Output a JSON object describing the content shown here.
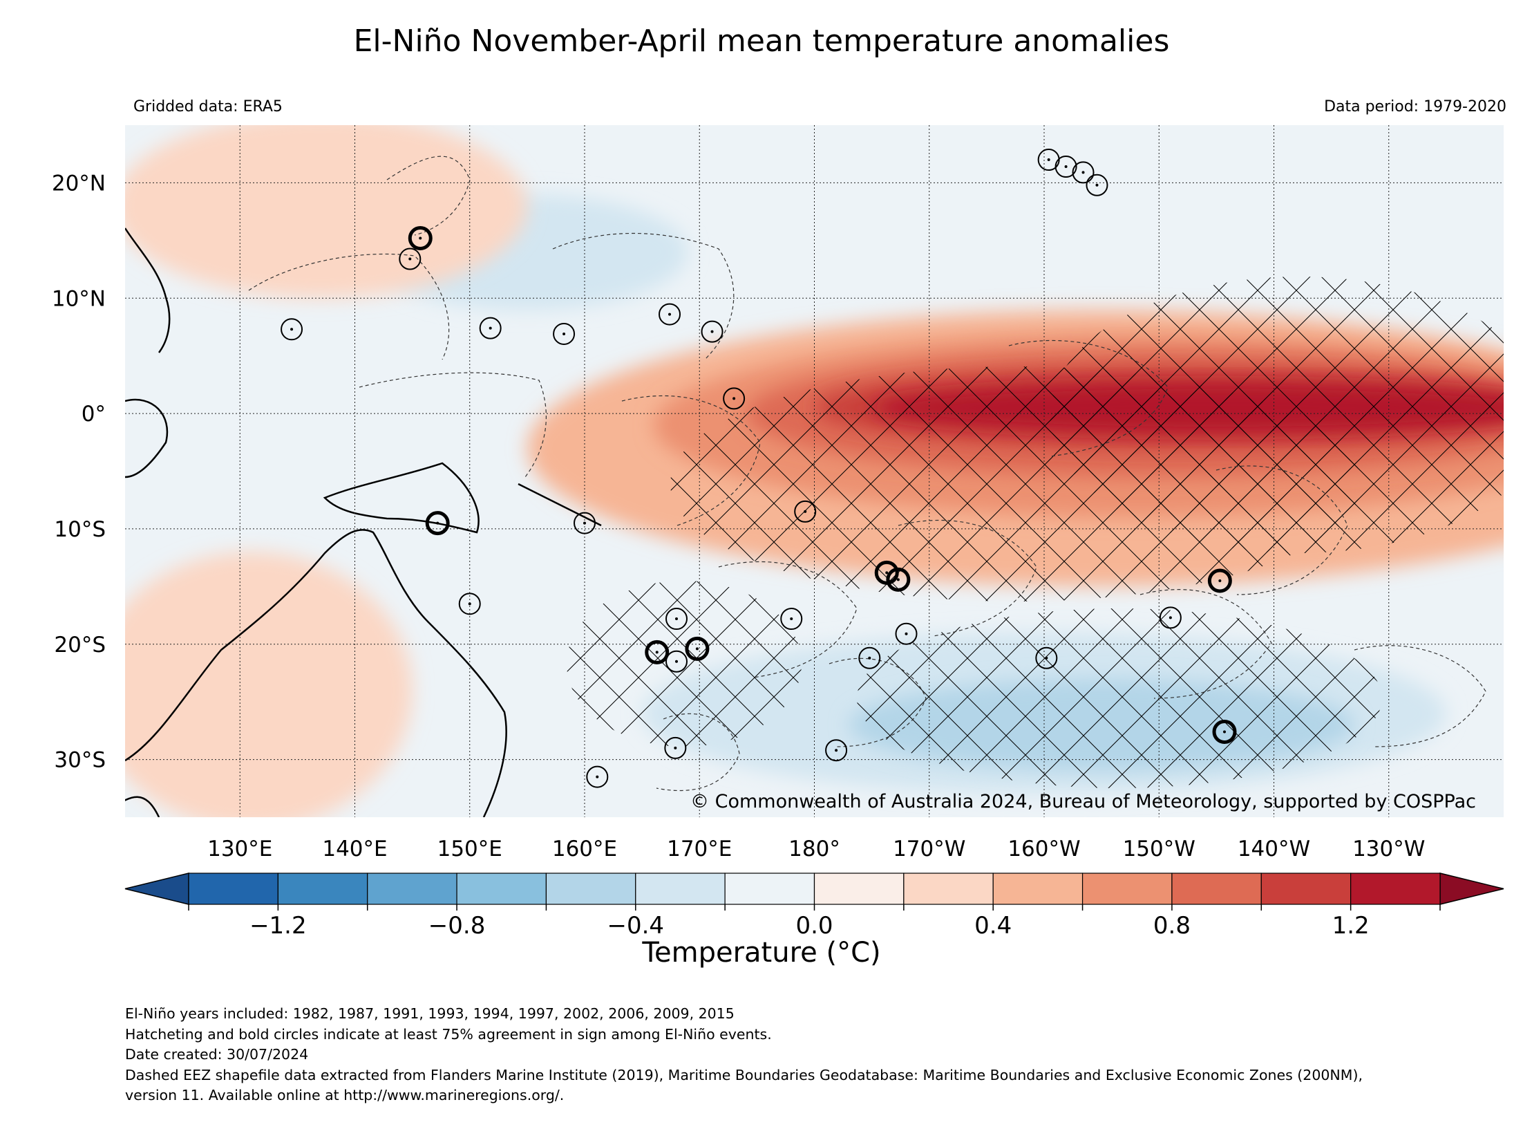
{
  "title": "El-Niño November-April mean temperature anomalies",
  "subtitle_left": "Gridded data: ERA5",
  "subtitle_right": "Data period: 1979-2020",
  "map": {
    "extent": {
      "lon_min": 120,
      "lon_max": 240,
      "lat_min": -35,
      "lat_max": 25
    },
    "lon_ticks": [
      {
        "lon": 130,
        "label": "130°E"
      },
      {
        "lon": 140,
        "label": "140°E"
      },
      {
        "lon": 150,
        "label": "150°E"
      },
      {
        "lon": 160,
        "label": "160°E"
      },
      {
        "lon": 170,
        "label": "170°E"
      },
      {
        "lon": 180,
        "label": "180°"
      },
      {
        "lon": 190,
        "label": "170°W"
      },
      {
        "lon": 200,
        "label": "160°W"
      },
      {
        "lon": 210,
        "label": "150°W"
      },
      {
        "lon": 220,
        "label": "140°W"
      },
      {
        "lon": 230,
        "label": "130°W"
      }
    ],
    "lat_ticks": [
      {
        "lat": 20,
        "label": "20°N"
      },
      {
        "lat": 10,
        "label": "10°N"
      },
      {
        "lat": 0,
        "label": "0°"
      },
      {
        "lat": -10,
        "label": "10°S"
      },
      {
        "lat": -20,
        "label": "20°S"
      },
      {
        "lat": -30,
        "label": "30°S"
      }
    ],
    "copyright": "© Commonwealth of Australia 2024, Bureau of Meteorology, supported by COSPPac",
    "anomaly_regions": [
      {
        "name": "equatorial-warm-core",
        "value": 1.3,
        "lon": 215,
        "lat": 0.5,
        "rlon": 30,
        "rlat": 2.2
      },
      {
        "name": "equatorial-warm-strong",
        "value": 1.1,
        "lon": 212,
        "lat": 0.5,
        "rlon": 32,
        "rlat": 3.5
      },
      {
        "name": "equatorial-warm",
        "value": 0.9,
        "lon": 210,
        "lat": 0,
        "rlon": 36,
        "rlat": 5.5
      },
      {
        "name": "equatorial-warm-moderate",
        "value": 0.7,
        "lon": 208,
        "lat": -1,
        "rlon": 42,
        "rlat": 8
      },
      {
        "name": "equatorial-warm-weak",
        "value": 0.5,
        "lon": 205,
        "lat": -3,
        "rlon": 50,
        "rlat": 12
      },
      {
        "name": "south-pacific-cool",
        "value": -0.5,
        "lon": 205,
        "lat": -27,
        "rlon": 22,
        "rlat": 4
      },
      {
        "name": "south-pacific-cool-weak",
        "value": -0.3,
        "lon": 200,
        "lat": -26,
        "rlon": 35,
        "rlat": 7
      },
      {
        "name": "north-pacific-cool",
        "value": -0.3,
        "lon": 155,
        "lat": 14,
        "rlon": 14,
        "rlat": 5
      },
      {
        "name": "australia-warm",
        "value": 0.3,
        "lon": 131,
        "lat": -24,
        "rlon": 14,
        "rlat": 12
      },
      {
        "name": "northwest-warm",
        "value": 0.3,
        "lon": 137,
        "lat": 18,
        "rlon": 18,
        "rlat": 8
      }
    ],
    "circles": [
      {
        "lon": 145.7,
        "lat": 15.2,
        "bold": true
      },
      {
        "lon": 144.8,
        "lat": 13.4,
        "bold": false
      },
      {
        "lon": 134.5,
        "lat": 7.3,
        "bold": false
      },
      {
        "lon": 151.8,
        "lat": 7.4,
        "bold": false
      },
      {
        "lon": 158.2,
        "lat": 6.9,
        "bold": false
      },
      {
        "lon": 167.4,
        "lat": 8.6,
        "bold": false
      },
      {
        "lon": 171.1,
        "lat": 7.1,
        "bold": false
      },
      {
        "lon": 173.0,
        "lat": 1.3,
        "bold": false
      },
      {
        "lon": 147.2,
        "lat": -9.5,
        "bold": true
      },
      {
        "lon": 150.0,
        "lat": -16.5,
        "bold": false
      },
      {
        "lon": 160.0,
        "lat": -9.5,
        "bold": false
      },
      {
        "lon": 179.2,
        "lat": -8.5,
        "bold": false
      },
      {
        "lon": 186.3,
        "lat": -13.8,
        "bold": true
      },
      {
        "lon": 187.3,
        "lat": -14.4,
        "bold": true
      },
      {
        "lon": 168.0,
        "lat": -17.8,
        "bold": false
      },
      {
        "lon": 178.0,
        "lat": -17.8,
        "bold": false
      },
      {
        "lon": 166.3,
        "lat": -20.7,
        "bold": true
      },
      {
        "lon": 168.0,
        "lat": -21.5,
        "bold": false
      },
      {
        "lon": 169.8,
        "lat": -20.4,
        "bold": true
      },
      {
        "lon": 188.0,
        "lat": -19.1,
        "bold": false
      },
      {
        "lon": 184.8,
        "lat": -21.2,
        "bold": false
      },
      {
        "lon": 200.2,
        "lat": -21.2,
        "bold": false
      },
      {
        "lon": 211.0,
        "lat": -17.7,
        "bold": false
      },
      {
        "lon": 215.3,
        "lat": -14.5,
        "bold": true
      },
      {
        "lon": 215.7,
        "lat": -27.6,
        "bold": true
      },
      {
        "lon": 167.9,
        "lat": -29.0,
        "bold": false
      },
      {
        "lon": 161.1,
        "lat": -31.5,
        "bold": false
      },
      {
        "lon": 181.9,
        "lat": -29.2,
        "bold": false
      },
      {
        "lon": 200.4,
        "lat": 22.0,
        "bold": false
      },
      {
        "lon": 201.9,
        "lat": 21.4,
        "bold": false
      },
      {
        "lon": 203.4,
        "lat": 20.9,
        "bold": false
      },
      {
        "lon": 204.6,
        "lat": 19.8,
        "bold": false
      }
    ]
  },
  "colorbar": {
    "label": "Temperature (°C)",
    "min": -1.4,
    "max": 1.4,
    "step": 0.2,
    "colors": [
      "#2166ac",
      "#3a86be",
      "#5fa3cf",
      "#89c0de",
      "#b3d5e8",
      "#d3e6f1",
      "#edf3f7",
      "#faeee8",
      "#fbd7c5",
      "#f6b595",
      "#ec9171",
      "#de6b54",
      "#c93f3b",
      "#b2182b"
    ],
    "under_color": "#1a4c8b",
    "over_color": "#8b0c24",
    "tick_values": [
      -1.2,
      -0.8,
      -0.4,
      0.0,
      0.4,
      0.8,
      1.2
    ],
    "tick_labels": [
      "−1.2",
      "−0.8",
      "−0.4",
      "0.0",
      "0.4",
      "0.8",
      "1.2"
    ]
  },
  "footer": {
    "line1": "El-Niño years included: 1982, 1987, 1991, 1993, 1994, 1997, 2002, 2006, 2009, 2015",
    "line2": "Hatcheting and bold circles indicate at least 75% agreement in sign among El-Niño events.",
    "line3": "Date created: 30/07/2024",
    "line4": "Dashed EEZ shapefile data extracted from Flanders Marine Institute (2019), Maritime Boundaries Geodatabase: Maritime Boundaries and Exclusive Economic Zones (200NM),",
    "line5": "version 11. Available online at http://www.marineregions.org/."
  }
}
